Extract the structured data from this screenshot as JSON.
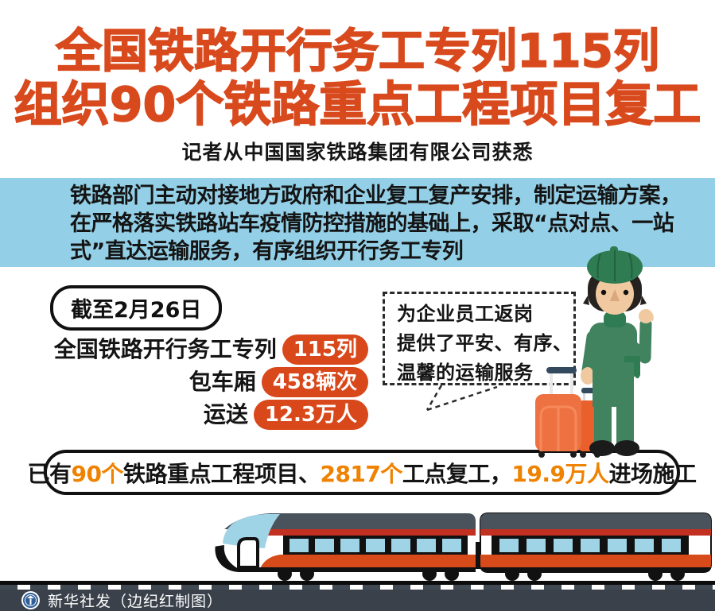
{
  "title": {
    "line1": "全国铁路开行务工专列115列",
    "line2": "组织90个铁路重点工程项目复工",
    "subtitle": "记者从中国国家铁路集团有限公司获悉"
  },
  "intro_banner": {
    "text": "铁路部门主动对接地方政府和企业复工复产安排，制定运输方案，\n在严格落实铁路站车疫情防控措施的基础上，采取“点对点、一站\n式”直达运输服务，有序组织开行务工专列"
  },
  "date_badge": {
    "label": "截至2月26日"
  },
  "stats": {
    "rows": [
      {
        "label": "全国铁路开行务工专列",
        "value": "115列"
      },
      {
        "label": "包车厢",
        "value": "458辆次"
      },
      {
        "label": "运送",
        "value": "12.3万人"
      }
    ]
  },
  "speech_bubble": {
    "text": "为企业员工返岗\n提供了平安、有序、\n温馨的运输服务"
  },
  "bottom_bar": {
    "segments": [
      {
        "text": "已有",
        "emphasis": false
      },
      {
        "text": "90个",
        "emphasis": true
      },
      {
        "text": "铁路重点工程项目、",
        "emphasis": false
      },
      {
        "text": "2817个",
        "emphasis": true
      },
      {
        "text": "工点复工，",
        "emphasis": false
      },
      {
        "text": "19.9万人",
        "emphasis": true
      },
      {
        "text": "进场施工",
        "emphasis": false
      }
    ]
  },
  "footer": {
    "credit": "新华社发（边纪红制图）",
    "logo_icon": "xinhua-emblem"
  },
  "colors": {
    "headline": "#d84a1d",
    "banner_bg": "#93cfe6",
    "pill_bg": "#d8481b",
    "emphasis_orange": "#ef8200",
    "footer_bg": "#3a414b",
    "train_roof": "#4a525c",
    "train_red": "#c23022",
    "train_orange": "#d74a1a",
    "window_blue": "#9fd3e6",
    "green_dark": "#2f7b52",
    "green": "#41825f",
    "skin": "#f0c9a0",
    "suitcase_orange": "#ee7142",
    "suitcase_dark": "#e9602d",
    "handle_navy": "#32495e"
  }
}
